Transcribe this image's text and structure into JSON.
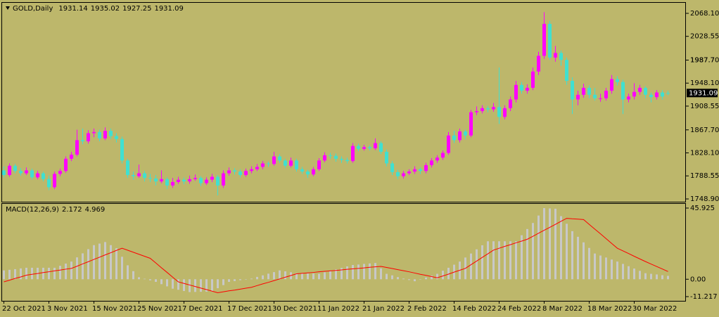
{
  "chart_data": [
    {
      "type": "candlestick",
      "title": "GOLD,Daily",
      "up_color": "#ff00ff",
      "down_color": "#40e0d0",
      "background": "#bdb76b",
      "ylim": [
        1744.1,
        2085.0
      ],
      "yticks": [
        {
          "value": 2068.1,
          "label": "2068.10"
        },
        2028.55,
        1987.7,
        {
          "value": 1987.7,
          "label": "1987.70"
        },
        {
          "value": 1948.1,
          "label": "1948.10"
        },
        1908.55,
        {
          "value": 1867.7,
          "label": "1867.70"
        },
        {
          "value": 1828.1,
          "label": "1828.10"
        },
        1788.55,
        {
          "value": 1748.9,
          "label": "1748.90"
        }
      ],
      "categories": [
        "22 Oct 2021",
        null,
        null,
        null,
        null,
        null,
        null,
        null,
        "3 Nov 2021",
        null,
        null,
        null,
        null,
        null,
        null,
        null,
        "15 Nov 2021",
        null,
        null,
        null,
        null,
        null,
        null,
        null,
        "25 Nov 2021",
        null,
        null,
        null,
        null,
        null,
        null,
        null,
        "7 Dec 2021",
        null,
        null,
        null,
        null,
        null,
        null,
        null,
        "17 Dec 2021",
        null,
        null,
        null,
        null,
        null,
        null,
        null,
        "30 Dec 2021",
        null,
        null,
        null,
        null,
        null,
        null,
        null,
        "11 Jan 2022",
        null,
        null,
        null,
        null,
        null,
        null,
        null,
        "21 Jan 2022",
        null,
        null,
        null,
        null,
        null,
        null,
        null,
        "2 Feb 2022",
        null,
        null,
        null,
        null,
        null,
        null,
        null,
        "14 Feb 2022",
        null,
        null,
        null,
        null,
        null,
        null,
        null,
        "24 Feb 2022",
        null,
        null,
        null,
        null,
        null,
        null,
        null,
        "8 Mar 2022",
        null,
        null,
        null,
        null,
        null,
        null,
        null,
        "18 Mar 2022",
        null,
        null,
        null,
        null,
        null,
        null,
        null,
        "30 Mar 2022",
        null,
        null,
        null,
        null,
        null,
        null
      ],
      "ohlc": [
        [
          1798,
          1805,
          1786,
          1790
        ],
        [
          1790,
          1810,
          1787,
          1806
        ],
        [
          1806,
          1809,
          1793,
          1797
        ],
        [
          1797,
          1802,
          1789,
          1793
        ],
        [
          1793,
          1803,
          1790,
          1798
        ],
        [
          1798,
          1801,
          1782,
          1786
        ],
        [
          1786,
          1797,
          1783,
          1793
        ],
        [
          1793,
          1796,
          1779,
          1783
        ],
        [
          1783,
          1789,
          1764,
          1769
        ],
        [
          1769,
          1796,
          1766,
          1792
        ],
        [
          1792,
          1801,
          1788,
          1797
        ],
        [
          1797,
          1822,
          1794,
          1818
        ],
        [
          1818,
          1830,
          1814,
          1825
        ],
        [
          1825,
          1868,
          1822,
          1850
        ],
        [
          1850,
          1870,
          1843,
          1848
        ],
        [
          1848,
          1867,
          1844,
          1862
        ],
        [
          1862,
          1870,
          1855,
          1864
        ],
        [
          1864,
          1868,
          1848,
          1853
        ],
        [
          1853,
          1872,
          1850,
          1866
        ],
        [
          1866,
          1870,
          1852,
          1857
        ],
        [
          1857,
          1862,
          1846,
          1852
        ],
        [
          1852,
          1856,
          1810,
          1815
        ],
        [
          1815,
          1818,
          1785,
          1790
        ],
        [
          1790,
          1796,
          1782,
          1788
        ],
        [
          1788,
          1808,
          1785,
          1793
        ],
        [
          1793,
          1797,
          1779,
          1785
        ],
        [
          1785,
          1792,
          1778,
          1784
        ],
        [
          1784,
          1790,
          1772,
          1779
        ],
        [
          1779,
          1798,
          1776,
          1783
        ],
        [
          1783,
          1786,
          1766,
          1772
        ],
        [
          1772,
          1785,
          1768,
          1778
        ],
        [
          1778,
          1787,
          1775,
          1782
        ],
        [
          1782,
          1786,
          1774,
          1779
        ],
        [
          1779,
          1789,
          1775,
          1783
        ],
        [
          1783,
          1791,
          1780,
          1785
        ],
        [
          1785,
          1788,
          1771,
          1776
        ],
        [
          1776,
          1786,
          1773,
          1782
        ],
        [
          1782,
          1792,
          1778,
          1787
        ],
        [
          1787,
          1790,
          1755,
          1772
        ],
        [
          1772,
          1798,
          1768,
          1793
        ],
        [
          1793,
          1803,
          1789,
          1798
        ],
        [
          1798,
          1802,
          1791,
          1796
        ],
        [
          1796,
          1800,
          1786,
          1790
        ],
        [
          1790,
          1801,
          1787,
          1797
        ],
        [
          1797,
          1805,
          1793,
          1800
        ],
        [
          1800,
          1809,
          1797,
          1804
        ],
        [
          1804,
          1814,
          1800,
          1810
        ],
        [
          1810,
          1813,
          1804,
          1809
        ],
        [
          1809,
          1830,
          1806,
          1822
        ],
        [
          1822,
          1826,
          1811,
          1815
        ],
        [
          1815,
          1818,
          1802,
          1806
        ],
        [
          1806,
          1820,
          1803,
          1815
        ],
        [
          1815,
          1818,
          1796,
          1800
        ],
        [
          1800,
          1804,
          1792,
          1796
        ],
        [
          1796,
          1799,
          1785,
          1791
        ],
        [
          1791,
          1804,
          1788,
          1800
        ],
        [
          1800,
          1819,
          1797,
          1815
        ],
        [
          1815,
          1829,
          1812,
          1824
        ],
        [
          1824,
          1828,
          1818,
          1823
        ],
        [
          1823,
          1827,
          1813,
          1818
        ],
        [
          1818,
          1822,
          1811,
          1816
        ],
        [
          1816,
          1820,
          1810,
          1814
        ],
        [
          1814,
          1845,
          1811,
          1840
        ],
        [
          1840,
          1844,
          1831,
          1835
        ],
        [
          1835,
          1842,
          1832,
          1838
        ],
        [
          1838,
          1841,
          1832,
          1836
        ],
        [
          1836,
          1853,
          1833,
          1845
        ],
        [
          1845,
          1848,
          1826,
          1830
        ],
        [
          1830,
          1834,
          1805,
          1810
        ],
        [
          1810,
          1814,
          1790,
          1795
        ],
        [
          1795,
          1799,
          1783,
          1788
        ],
        [
          1788,
          1797,
          1784,
          1793
        ],
        [
          1793,
          1800,
          1790,
          1796
        ],
        [
          1796,
          1805,
          1792,
          1800
        ],
        [
          1800,
          1803,
          1792,
          1797
        ],
        [
          1797,
          1811,
          1793,
          1807
        ],
        [
          1807,
          1819,
          1803,
          1815
        ],
        [
          1815,
          1824,
          1811,
          1820
        ],
        [
          1820,
          1832,
          1816,
          1828
        ],
        [
          1828,
          1864,
          1825,
          1858
        ],
        [
          1858,
          1866,
          1845,
          1850
        ],
        [
          1850,
          1870,
          1846,
          1865
        ],
        [
          1865,
          1868,
          1852,
          1858
        ],
        [
          1858,
          1902,
          1855,
          1898
        ],
        [
          1898,
          1908,
          1893,
          1900
        ],
        [
          1900,
          1910,
          1896,
          1905
        ],
        [
          1905,
          1909,
          1898,
          1903
        ],
        [
          1903,
          1914,
          1899,
          1907
        ],
        [
          1907,
          1975,
          1878,
          1890
        ],
        [
          1890,
          1910,
          1886,
          1905
        ],
        [
          1905,
          1925,
          1900,
          1920
        ],
        [
          1920,
          1952,
          1915,
          1945
        ],
        [
          1945,
          1950,
          1930,
          1935
        ],
        [
          1935,
          1946,
          1930,
          1940
        ],
        [
          1940,
          1975,
          1936,
          1968
        ],
        [
          1968,
          2002,
          1962,
          1995
        ],
        [
          1995,
          2070,
          1990,
          2050
        ],
        [
          2050,
          2055,
          1988,
          1992
        ],
        [
          1992,
          2012,
          1985,
          2000
        ],
        [
          2000,
          2004,
          1978,
          1988
        ],
        [
          1988,
          1992,
          1945,
          1952
        ],
        [
          1952,
          1958,
          1895,
          1920
        ],
        [
          1920,
          1935,
          1910,
          1928
        ],
        [
          1928,
          1947,
          1923,
          1940
        ],
        [
          1940,
          1944,
          1922,
          1928
        ],
        [
          1928,
          1940,
          1918,
          1922
        ],
        [
          1922,
          1930,
          1916,
          1922
        ],
        [
          1922,
          1940,
          1918,
          1935
        ],
        [
          1935,
          1962,
          1930,
          1955
        ],
        [
          1955,
          1960,
          1944,
          1950
        ],
        [
          1950,
          1954,
          1895,
          1920
        ],
        [
          1920,
          1930,
          1915,
          1925
        ],
        [
          1925,
          1948,
          1920,
          1933
        ],
        [
          1933,
          1945,
          1928,
          1940
        ],
        [
          1940,
          1943,
          1922,
          1928
        ],
        [
          1928,
          1932,
          1915,
          1924
        ],
        [
          1924,
          1936,
          1920,
          1932
        ],
        [
          1932,
          1936,
          1920,
          1925
        ],
        [
          1931.14,
          1935.02,
          1927.25,
          1931.09
        ]
      ]
    },
    {
      "type": "macd",
      "title": "MACD(12,26,9)",
      "color": "#c8c8c8",
      "signal_color": "#ff0000",
      "ylim": [
        -11.217,
        45.925
      ],
      "yticks": [
        45.925,
        {
          "value": 0,
          "label": "0.00"
        },
        -11.217
      ],
      "values": [
        5.7,
        6.1,
        6.5,
        7.0,
        7.4,
        7.4,
        7.4,
        7.4,
        7.4,
        7.4,
        8.7,
        10.1,
        11.4,
        14.1,
        16.7,
        19.4,
        22.0,
        23.0,
        24.0,
        22.0,
        20.0,
        14.5,
        9.0,
        5.2,
        1.3,
        0.3,
        -0.7,
        -1.7,
        -3.2,
        -4.6,
        -6.1,
        -6.8,
        -7.6,
        -8.3,
        -8.2,
        -8.1,
        -8.0,
        -7.9,
        -5.8,
        -3.8,
        -1.7,
        -1.2,
        -0.6,
        -0.1,
        0.4,
        1.5,
        2.5,
        3.6,
        4.6,
        5.7,
        5.1,
        4.5,
        3.9,
        3.8,
        3.7,
        3.6,
        3.5,
        4.5,
        5.4,
        6.4,
        7.3,
        8.3,
        9.2,
        9.5,
        9.9,
        10.2,
        10.5,
        7.0,
        3.5,
        2.5,
        1.4,
        0.4,
        -0.5,
        -1.3,
        -0.1,
        1.1,
        2.3,
        3.5,
        5.5,
        7.4,
        9.4,
        11.4,
        14.0,
        16.6,
        19.3,
        21.9,
        24.5,
        24.5,
        24.5,
        24.5,
        24.5,
        24.5,
        28.4,
        32.4,
        36.3,
        41.1,
        45.9,
        45.7,
        45.5,
        40.7,
        35.8,
        31.0,
        27.4,
        23.8,
        20.2,
        16.6,
        15.3,
        14.0,
        12.7,
        11.4,
        9.9,
        8.4,
        6.9,
        5.4,
        3.9,
        3.5,
        3.1,
        2.6,
        2.172
      ],
      "signal": [
        -1.7,
        -0.6,
        0.5,
        1.5,
        2.6,
        3.2,
        3.7,
        4.3,
        4.8,
        5.4,
        5.9,
        6.5,
        7.0,
        8.4,
        9.9,
        11.3,
        12.8,
        14.2,
        15.7,
        17.1,
        18.6,
        20.0,
        18.7,
        17.4,
        16.1,
        14.8,
        13.5,
        10.5,
        7.4,
        4.4,
        1.3,
        -1.7,
        -2.7,
        -3.7,
        -4.7,
        -5.7,
        -6.7,
        -7.7,
        -8.7,
        -8.1,
        -7.5,
        -7.0,
        -6.4,
        -5.8,
        -5.2,
        -4.1,
        -3.0,
        -2.0,
        -0.9,
        0.2,
        1.3,
        2.4,
        3.5,
        3.8,
        4.1,
        4.4,
        4.8,
        5.1,
        5.4,
        5.7,
        6.0,
        6.4,
        6.7,
        7.0,
        7.3,
        7.7,
        8.0,
        8.3,
        7.6,
        6.9,
        6.2,
        5.5,
        4.8,
        4.0,
        3.2,
        2.5,
        1.7,
        0.9,
        2.1,
        3.3,
        4.6,
        5.8,
        7.0,
        9.4,
        11.7,
        14.1,
        16.4,
        18.8,
        20.0,
        21.2,
        22.3,
        23.5,
        24.6,
        25.8,
        27.7,
        29.7,
        31.6,
        33.5,
        35.4,
        37.4,
        39.3,
        39.0,
        38.8,
        38.5,
        35.4,
        32.3,
        29.3,
        26.2,
        23.1,
        20.0,
        18.3,
        16.6,
        14.8,
        13.1,
        11.4,
        9.8,
        8.2,
        6.6,
        4.969
      ]
    }
  ]
}
